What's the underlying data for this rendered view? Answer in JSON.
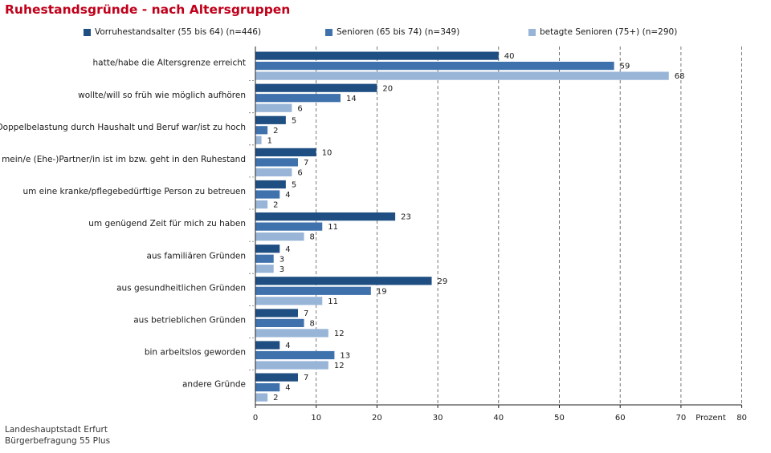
{
  "title": "Ruhestandsgründe - nach Altersgruppen",
  "source": {
    "line1": "Landeshauptstadt Erfurt",
    "line2": "Bürgerbefragung 55 Plus"
  },
  "chart_data": {
    "type": "bar",
    "orientation": "horizontal",
    "title": "Ruhestandsgründe - nach Altersgruppen",
    "xlabel": "Prozent",
    "xlim": [
      0,
      80
    ],
    "xticks": [
      0,
      10,
      20,
      30,
      40,
      50,
      60,
      70,
      80
    ],
    "grid": "vertical dashed",
    "legend_position": "top",
    "categories": [
      "hatte/habe die Altersgrenze erreicht",
      "wollte/will so früh wie möglich aufhören",
      "Doppelbelastung durch Haushalt und Beruf war/ist zu hoch",
      "mein/e (Ehe-)Partner/in ist im bzw. geht in den Ruhestand",
      "um eine kranke/pflegebedürftige Person zu betreuen",
      "um genügend Zeit für mich zu haben",
      "aus familiären Gründen",
      "aus gesundheitlichen Gründen",
      "aus betrieblichen Gründen",
      "bin arbeitslos geworden",
      "andere Gründe"
    ],
    "series": [
      {
        "name": "Vorruhestandsalter (55 bis 64) (n=446)",
        "color": "#1f4e82",
        "values": [
          40,
          20,
          5,
          10,
          5,
          23,
          4,
          29,
          7,
          4,
          7
        ]
      },
      {
        "name": "Senioren (65 bis 74) (n=349)",
        "color": "#3f72ad",
        "values": [
          59,
          14,
          2,
          7,
          4,
          11,
          3,
          19,
          8,
          13,
          4
        ]
      },
      {
        "name": "betagte Senioren (75+) (n=290)",
        "color": "#98b5d8",
        "values": [
          68,
          6,
          1,
          6,
          2,
          8,
          3,
          11,
          12,
          12,
          2
        ]
      }
    ]
  }
}
